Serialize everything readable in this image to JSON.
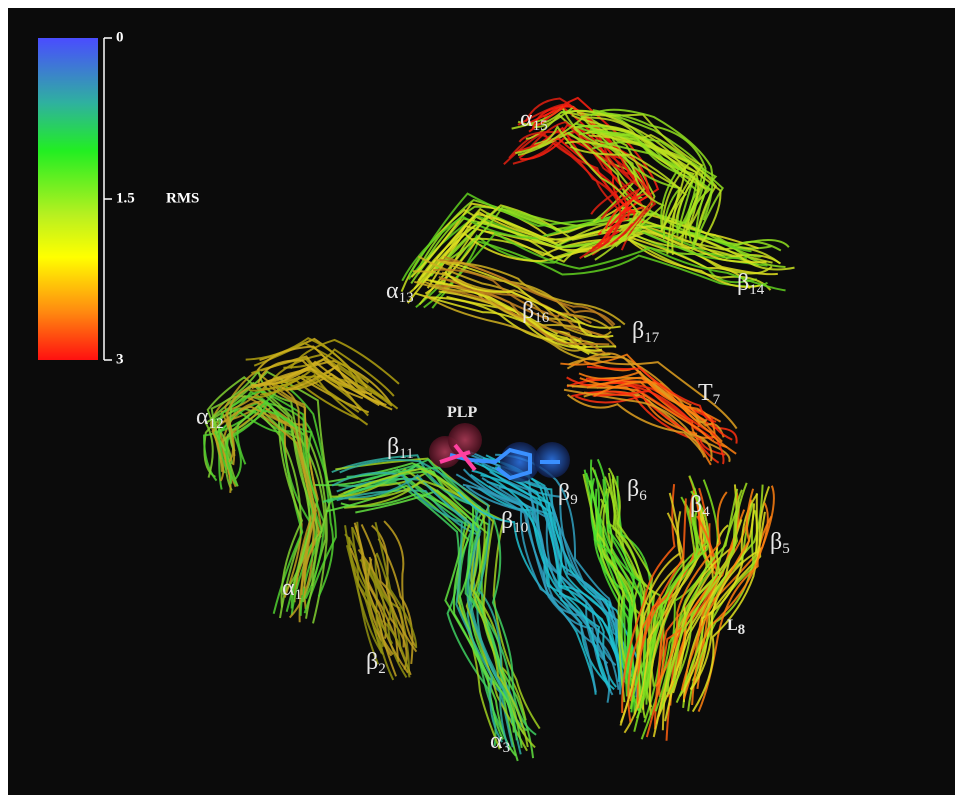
{
  "colorbar": {
    "label": "RMS",
    "lim": [
      0,
      3
    ],
    "ticks": [
      0,
      1.5,
      3
    ]
  },
  "labels": [
    {
      "name": "α",
      "sub": "15"
    },
    {
      "name": "α",
      "sub": "13"
    },
    {
      "name": "β",
      "sub": "16"
    },
    {
      "name": "β",
      "sub": "17"
    },
    {
      "name": "β",
      "sub": "14"
    },
    {
      "name": "T",
      "sub": "7"
    },
    {
      "name": "α",
      "sub": "12"
    },
    {
      "name": "PLP"
    },
    {
      "name": "β",
      "sub": "11"
    },
    {
      "name": "β",
      "sub": "9"
    },
    {
      "name": "β",
      "sub": "6"
    },
    {
      "name": "β",
      "sub": "4"
    },
    {
      "name": "β",
      "sub": "10"
    },
    {
      "name": "β",
      "sub": "5"
    },
    {
      "name": "α",
      "sub": "1"
    },
    {
      "name": "L",
      "sub": "8"
    },
    {
      "name": "β",
      "sub": "2"
    },
    {
      "name": "α",
      "sub": "3"
    }
  ]
}
